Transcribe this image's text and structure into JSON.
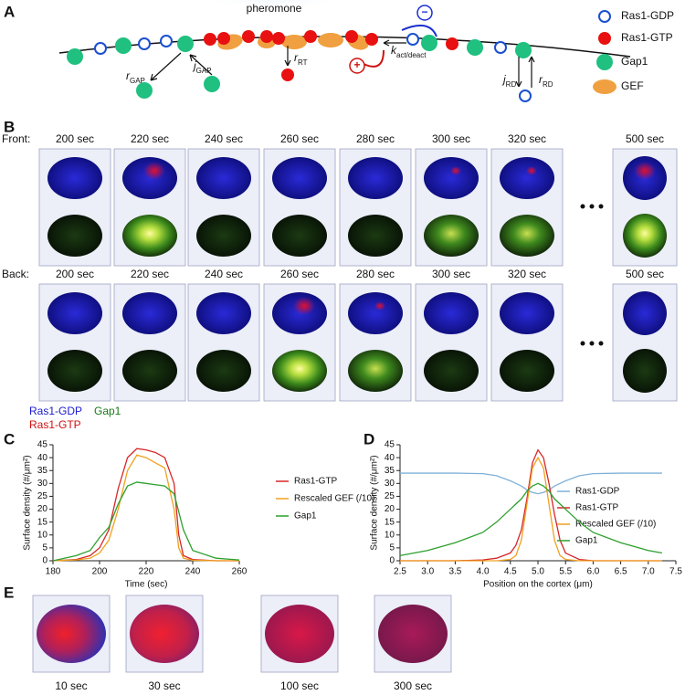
{
  "panel_labels": [
    "A",
    "B",
    "C",
    "D",
    "E"
  ],
  "panel_a": {
    "pheromone": "pheromone",
    "legend": [
      "Ras1-GDP",
      "Ras1-GTP",
      "Gap1",
      "GEF"
    ],
    "rates": [
      {
        "symbol": "r",
        "sub": "GAP"
      },
      {
        "symbol": "j",
        "sub": "GAP"
      },
      {
        "symbol": "r",
        "sub": "RT"
      },
      {
        "symbol": "k",
        "sub": "act/deact"
      },
      {
        "symbol": "j",
        "sub": "RD"
      },
      {
        "symbol": "r",
        "sub": "RD"
      }
    ],
    "signs": [
      "−",
      "+"
    ]
  },
  "panel_b": {
    "rows": [
      {
        "label": "Front:",
        "times": [
          "200 sec",
          "220 sec",
          "240 sec",
          "260 sec",
          "280 sec",
          "300 sec",
          "320 sec",
          "500 sec"
        ]
      },
      {
        "label": "Back:",
        "times": [
          "200 sec",
          "220 sec",
          "240 sec",
          "260 sec",
          "280 sec",
          "300 sec",
          "320 sec",
          "500 sec"
        ]
      }
    ],
    "legend": [
      "Ras1-GDP",
      "Ras1-GTP",
      "Gap1"
    ]
  },
  "panel_e": {
    "times": [
      "10 sec",
      "30 sec",
      "100 sec",
      "300 sec"
    ]
  },
  "chart_data": [
    {
      "type": "line",
      "xlabel": "Time (sec)",
      "ylabel": "Surface density (#/μm²)",
      "x": [
        180,
        190,
        196,
        200,
        204,
        208,
        212,
        216,
        220,
        224,
        228,
        232,
        234,
        236,
        240,
        250,
        260
      ],
      "series": [
        {
          "name": "Ras1-GTP",
          "color": "#d62728",
          "values": [
            0,
            0.5,
            2,
            5,
            12,
            28,
            40,
            43.5,
            43,
            42,
            40,
            30,
            10,
            2,
            0.5,
            0,
            0
          ]
        },
        {
          "name": "Rescaled GEF (/10)",
          "color": "#f0a020",
          "values": [
            0,
            0.3,
            1,
            3,
            8,
            20,
            35,
            41,
            40,
            38,
            36,
            20,
            5,
            1,
            0.2,
            0,
            0
          ]
        },
        {
          "name": "Gap1",
          "color": "#2ca02c",
          "values": [
            0,
            2,
            4,
            9,
            13,
            22,
            29,
            30.5,
            30,
            29.5,
            29,
            26,
            19,
            12,
            4,
            1,
            0.3
          ]
        }
      ],
      "xlim": [
        180,
        260
      ],
      "xticks": [
        180,
        200,
        220,
        240,
        260
      ],
      "ylim": [
        0,
        45
      ],
      "yticks": [
        0,
        5,
        10,
        15,
        20,
        25,
        30,
        35,
        40,
        45
      ]
    },
    {
      "type": "line",
      "xlabel": "Position on the cortex (μm)",
      "ylabel": "Surface density (#/μm²)",
      "x": [
        2.5,
        3,
        3.5,
        4,
        4.25,
        4.5,
        4.6,
        4.7,
        4.8,
        4.9,
        5,
        5.1,
        5.2,
        5.3,
        5.4,
        5.5,
        5.75,
        6,
        6.5,
        7,
        7.25
      ],
      "series": [
        {
          "name": "Ras1-GDP",
          "color": "#7fb0d8",
          "values": [
            34,
            34,
            34,
            33.8,
            33,
            31,
            30,
            29,
            27.5,
            26.5,
            26,
            26.5,
            27.5,
            29,
            30,
            31,
            33,
            33.8,
            34,
            34,
            34
          ]
        },
        {
          "name": "Ras1-GTP",
          "color": "#d62728",
          "values": [
            0,
            0,
            0,
            0.3,
            1,
            3,
            6,
            12,
            24,
            38,
            43,
            40,
            30,
            18,
            8,
            3,
            0.5,
            0,
            0,
            0,
            0
          ]
        },
        {
          "name": "Rescaled GEF (/10)",
          "color": "#f0a020",
          "values": [
            0,
            0,
            0,
            0,
            0,
            0.5,
            2,
            8,
            22,
            36,
            40,
            36,
            22,
            8,
            2,
            0.5,
            0,
            0,
            0,
            0,
            0
          ]
        },
        {
          "name": "Gap1",
          "color": "#2ca02c",
          "values": [
            2,
            4,
            7,
            11,
            15,
            20,
            22,
            24,
            27,
            29,
            30,
            29,
            27,
            24,
            22,
            20,
            15,
            11,
            7,
            4,
            3
          ]
        }
      ],
      "xlim": [
        2.5,
        7.5
      ],
      "xticks": [
        {
          "value": 2.5,
          "label": "2.5"
        },
        {
          "value": 3,
          "label": "3.0"
        },
        {
          "value": 3.5,
          "label": "3.5"
        },
        {
          "value": 4,
          "label": "4.0"
        },
        {
          "value": 4.5,
          "label": "4.5"
        },
        {
          "value": 5,
          "label": "5.0"
        },
        {
          "value": 5.5,
          "label": "5.5"
        },
        {
          "value": 6,
          "label": "6.0"
        },
        {
          "value": 6.5,
          "label": "6.5"
        },
        {
          "value": 7,
          "label": "7.0"
        },
        {
          "value": 7.5,
          "label": "7.5"
        }
      ],
      "ylim": [
        0,
        45
      ],
      "yticks": [
        0,
        5,
        10,
        15,
        20,
        25,
        30,
        35,
        40,
        45
      ]
    }
  ]
}
